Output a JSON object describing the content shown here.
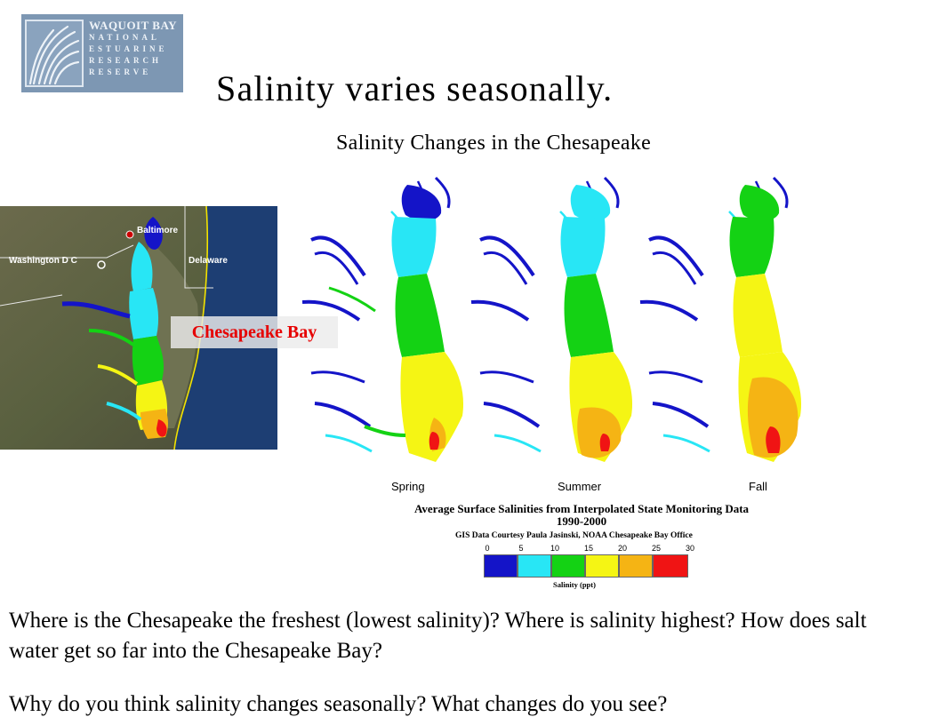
{
  "logo": {
    "line1": "WAQUOIT BAY",
    "line2": "NATIONAL",
    "line3": "ESTUARINE",
    "line4": "RESEARCH",
    "line5": "RESERVE"
  },
  "title": "Salinity varies seasonally.",
  "subtitle": "Salinity Changes in the Chesapeake",
  "satellite_map": {
    "label_washington": "Washington D C",
    "label_baltimore": "Baltimore",
    "label_delaware": "Delaware",
    "overlay_label": "Chesapeake Bay"
  },
  "salinity_figure": {
    "seasons": [
      "Spring",
      "Summer",
      "Fall"
    ],
    "caption_line1": "Average Surface Salinities from Interpolated State Monitoring Data",
    "caption_line2": "1990-2000",
    "credit": "GIS Data Courtesy Paula Jasinski, NOAA Chesapeake Bay Office",
    "legend": {
      "ticks": [
        "0",
        "5",
        "10",
        "15",
        "20",
        "25",
        "30"
      ],
      "unit": "Salinity (ppt)",
      "colors": [
        "#1414c8",
        "#28e6f5",
        "#14d214",
        "#f5f514",
        "#f5b414",
        "#f01414"
      ]
    }
  },
  "questions": {
    "q1": "Where is the Chesapeake the freshest (lowest salinity)?  Where is salinity highest?  How does salt water get so far into the Chesapeake Bay?",
    "q2": "Why do you think salinity changes seasonally?  What changes do you see?"
  }
}
